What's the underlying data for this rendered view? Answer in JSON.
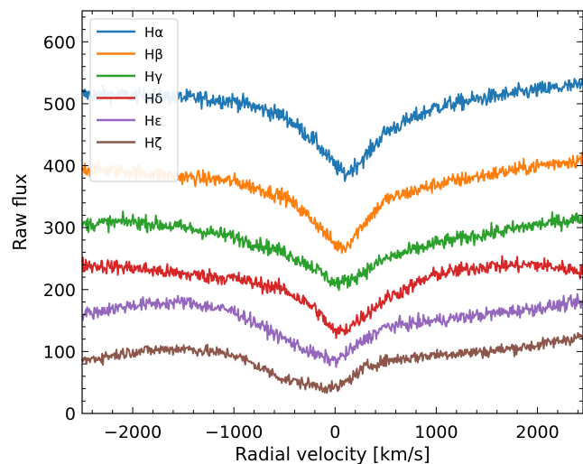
{
  "chart_data": {
    "type": "line",
    "xlabel": "Radial velocity [km/s]",
    "ylabel": "Raw flux",
    "xlim": [
      -2500,
      2450
    ],
    "ylim": [
      0,
      650
    ],
    "xticks": [
      -2000,
      -1000,
      0,
      1000,
      2000
    ],
    "xtick_labels": [
      "−2000",
      "−1000",
      "0",
      "1000",
      "2000"
    ],
    "yticks": [
      0,
      100,
      200,
      300,
      400,
      500,
      600
    ],
    "ytick_labels": [
      "0",
      "100",
      "200",
      "300",
      "400",
      "500",
      "600"
    ],
    "grid": false,
    "legend_position": "top-left",
    "series": [
      {
        "name": "Hα",
        "color": "#1f77b4",
        "noise": 11,
        "x": [
          -2500,
          -2000,
          -1500,
          -1000,
          -500,
          -200,
          0,
          100,
          300,
          500,
          1000,
          1500,
          2000,
          2450
        ],
        "y": [
          515,
          513,
          510,
          505,
          480,
          440,
          400,
          385,
          415,
          455,
          495,
          510,
          522,
          530
        ]
      },
      {
        "name": "Hβ",
        "color": "#ff7f0e",
        "noise": 10,
        "x": [
          -2500,
          -2000,
          -1500,
          -1000,
          -500,
          -200,
          0,
          100,
          300,
          500,
          1000,
          1500,
          2000,
          2450
        ],
        "y": [
          395,
          390,
          382,
          375,
          350,
          310,
          272,
          268,
          310,
          345,
          370,
          385,
          400,
          410
        ]
      },
      {
        "name": "Hγ",
        "color": "#2ca02c",
        "noise": 10,
        "x": [
          -2500,
          -2000,
          -1500,
          -1000,
          -500,
          -200,
          0,
          100,
          300,
          500,
          1000,
          1500,
          2000,
          2450
        ],
        "y": [
          305,
          310,
          300,
          285,
          260,
          235,
          210,
          212,
          230,
          250,
          275,
          290,
          305,
          315
        ]
      },
      {
        "name": "Hδ",
        "color": "#d62728",
        "noise": 10,
        "x": [
          -2500,
          -2000,
          -1500,
          -1000,
          -500,
          -200,
          0,
          100,
          300,
          500,
          1000,
          1500,
          2000,
          2450
        ],
        "y": [
          240,
          235,
          225,
          218,
          200,
          170,
          130,
          135,
          160,
          185,
          225,
          238,
          240,
          230
        ]
      },
      {
        "name": "Hε",
        "color": "#9467bd",
        "noise": 9,
        "x": [
          -2500,
          -2000,
          -1500,
          -1000,
          -500,
          -200,
          0,
          100,
          300,
          500,
          1000,
          1500,
          2000,
          2450
        ],
        "y": [
          160,
          175,
          180,
          165,
          120,
          95,
          85,
          95,
          120,
          140,
          150,
          160,
          170,
          180
        ]
      },
      {
        "name": "Hζ",
        "color": "#8c564b",
        "noise": 8,
        "x": [
          -2500,
          -2000,
          -1500,
          -1000,
          -500,
          -200,
          0,
          100,
          300,
          500,
          1000,
          1500,
          2000,
          2450
        ],
        "y": [
          85,
          100,
          105,
          95,
          55,
          45,
          40,
          50,
          75,
          85,
          95,
          100,
          110,
          125
        ]
      }
    ]
  }
}
